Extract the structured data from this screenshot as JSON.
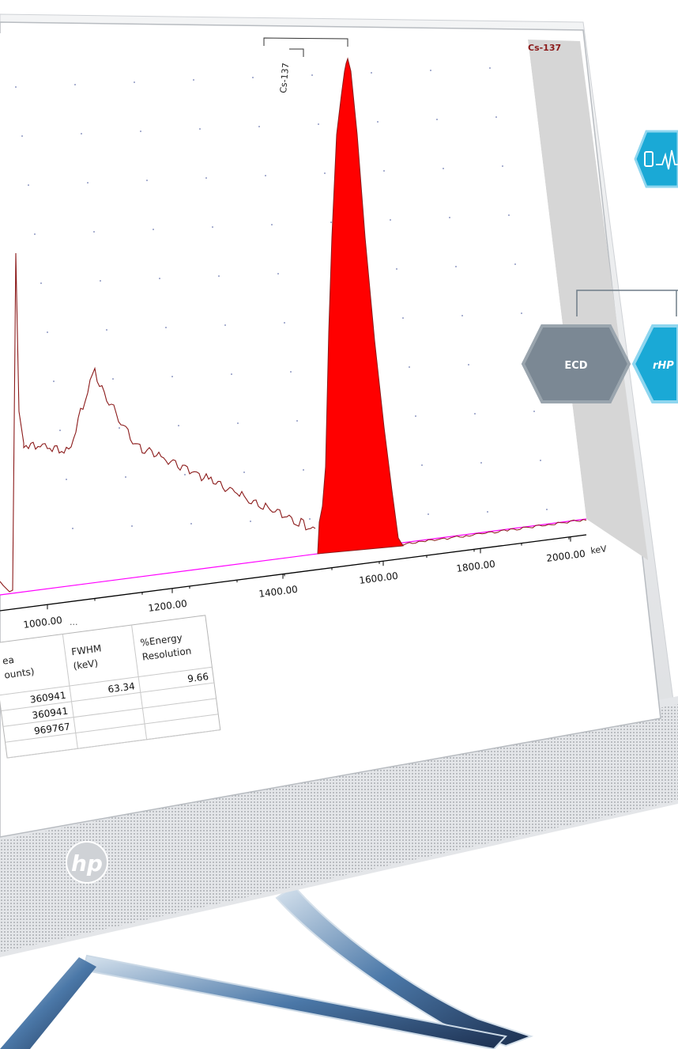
{
  "spectrum": {
    "corner_label": "Cs-137",
    "peak_label": "Cs-137",
    "unit": "keV",
    "ellipsis": "...",
    "peak_region_fill": "#ff0000",
    "trace_color": "#8b1a1a",
    "baseline_color": "#ff00ff"
  },
  "chart_data": {
    "type": "area",
    "xlabel": "keV",
    "x_ticks": [
      "1000.00",
      "1200.00",
      "1400.00",
      "1600.00",
      "1800.00",
      "2000.00"
    ],
    "peak_marker": "Cs-137",
    "highlighted_peak": "Cs-137",
    "grid": true
  },
  "results_table": {
    "headers": [
      {
        "line1": "ea",
        "line2": "ounts)"
      },
      {
        "line1": "FWHM",
        "line2": "(keV)"
      },
      {
        "line1": "%Energy",
        "line2": "Resolution"
      }
    ],
    "rows": [
      [
        "360941",
        "63.34",
        "9.66"
      ],
      [
        "360941",
        "",
        ""
      ],
      [
        "969767",
        "",
        ""
      ],
      [
        "",
        "",
        ""
      ]
    ]
  },
  "side_panel": {
    "node_left": "ECD",
    "node_right": "rHP",
    "left_color": "#6e7c87",
    "right_color": "#1aa9d6"
  },
  "monitor": {
    "brand_logo": "hp"
  }
}
